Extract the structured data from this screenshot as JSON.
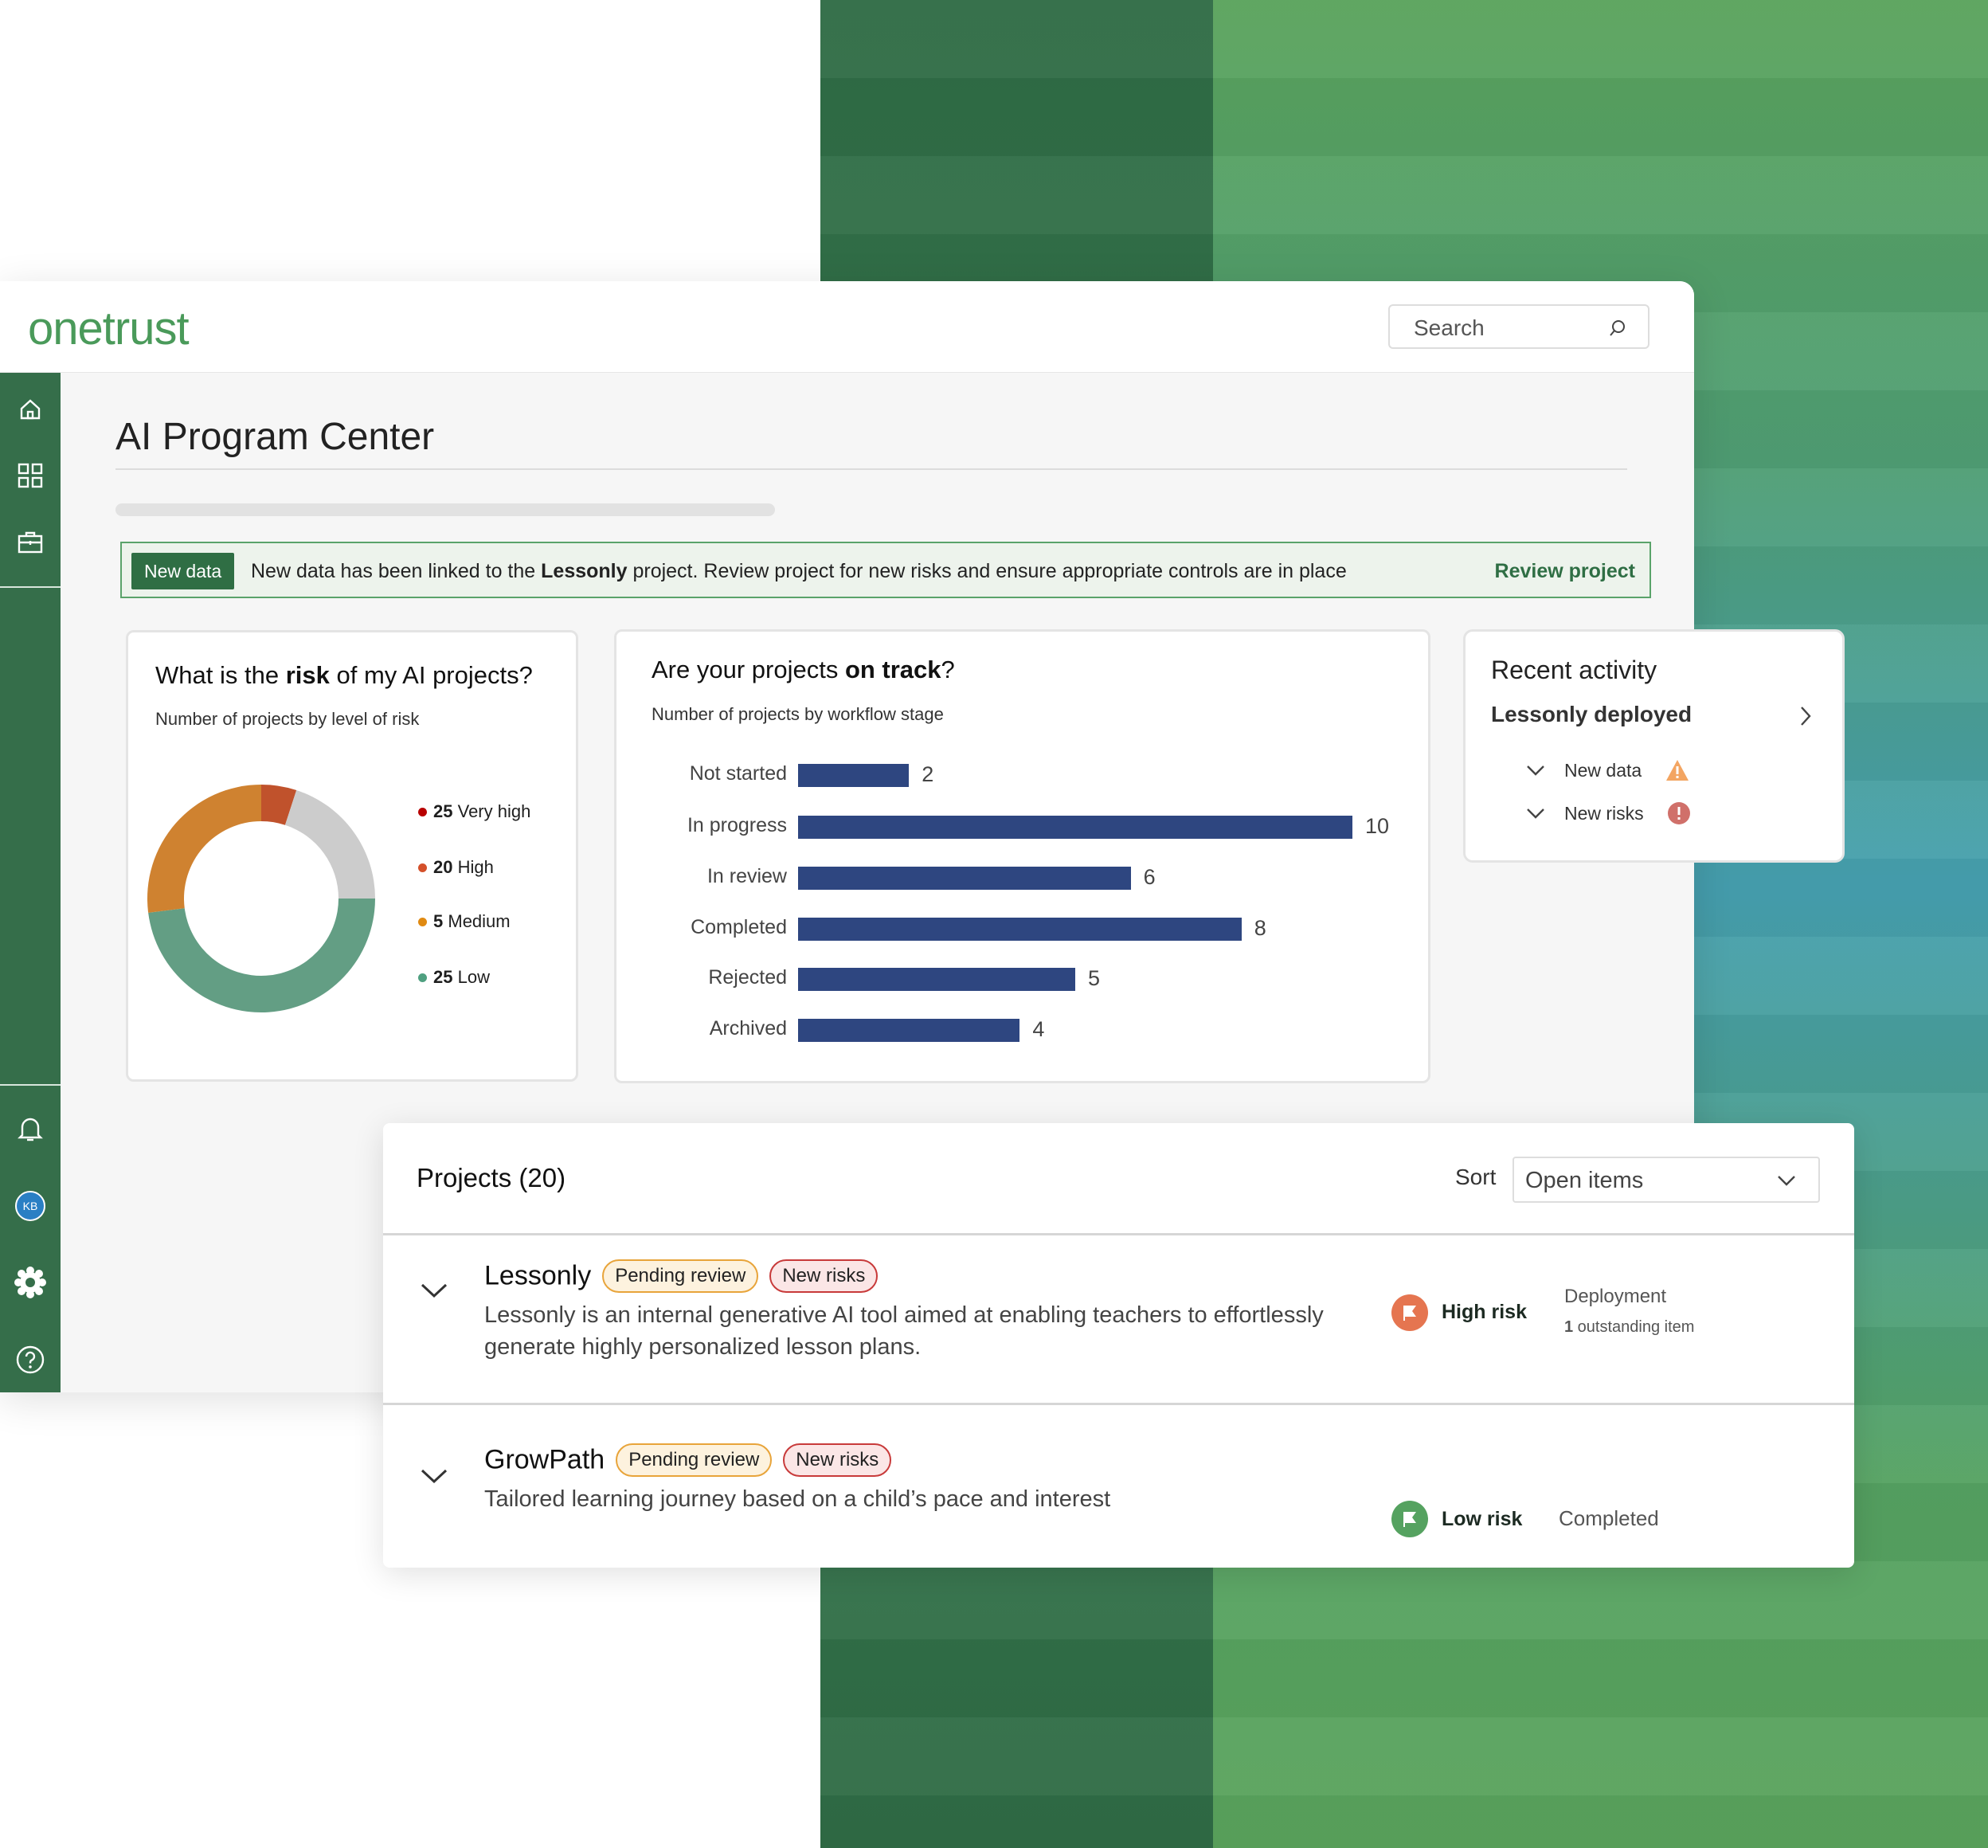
{
  "app": {
    "logo": "onetrust",
    "search_placeholder": "Search"
  },
  "sidebar": {
    "items": [
      {
        "icon": "home-icon"
      },
      {
        "icon": "grid-icon"
      },
      {
        "icon": "briefcase-icon"
      }
    ],
    "bottom": [
      {
        "icon": "bell-icon"
      },
      {
        "icon": "avatar",
        "label": "KB"
      },
      {
        "icon": "gear-icon"
      },
      {
        "icon": "help-icon"
      }
    ]
  },
  "page": {
    "title": "AI Program Center"
  },
  "banner": {
    "badge": "New data",
    "pre": "New data has been linked to the ",
    "project": "Lessonly",
    "post": " project. Review project for new risks and ensure appropriate controls are in place",
    "link": "Review project"
  },
  "risk_card": {
    "title_pre": "What is the ",
    "title_bold": "risk",
    "title_post": " of my AI projects?",
    "subtitle": "Number of projects by level of risk"
  },
  "bar_card": {
    "title_pre": "Are your projects ",
    "title_bold": "on track",
    "title_post": "?",
    "subtitle": "Number of projects by workflow stage"
  },
  "chart_data": [
    {
      "type": "pie",
      "subtype": "donut",
      "legend": [
        {
          "value": "25",
          "label": "Very high",
          "color": "#b80000"
        },
        {
          "value": "20",
          "label": "High",
          "color": "#d4502a"
        },
        {
          "value": "5",
          "label": "Medium",
          "color": "#e08a12"
        },
        {
          "value": "25",
          "label": "Low",
          "color": "#4fa080"
        }
      ],
      "slices": [
        {
          "share": 5,
          "color": "#c0522c"
        },
        {
          "share": 20,
          "color": "#cccccc"
        },
        {
          "share": 48,
          "color": "#639e84"
        },
        {
          "share": 27,
          "color": "#cf8230"
        }
      ],
      "legend_position": "right"
    },
    {
      "type": "bar",
      "orientation": "horizontal",
      "categories": [
        "Not started",
        "In progress",
        "In review",
        "Completed",
        "Rejected",
        "Archived"
      ],
      "values": [
        2,
        10,
        6,
        8,
        5,
        4
      ],
      "color": "#2e4680"
    }
  ],
  "recent": {
    "title": "Recent activity",
    "item": "Lessonly deployed",
    "subs": [
      {
        "label": "New data",
        "icon": "warning-icon",
        "color": "#f3a562"
      },
      {
        "label": "New risks",
        "icon": "error-icon",
        "color": "#d0706a"
      }
    ]
  },
  "projects": {
    "title": "Projects (20)",
    "sort_label": "Sort",
    "sort_value": "Open items",
    "rows": [
      {
        "name": "Lessonly",
        "tags": [
          "Pending review",
          "New risks"
        ],
        "desc": "Lessonly is an internal generative AI tool aimed at enabling teachers to effortlessly generate highly personalized lesson plans.",
        "risk": "High risk",
        "risk_color": "#e57550",
        "stage": "Deployment",
        "outstanding_count": "1",
        "outstanding_text": " outstanding item"
      },
      {
        "name": "GrowPath",
        "tags": [
          "Pending review",
          "New risks"
        ],
        "desc": "Tailored learning journey based on a child’s pace and interest",
        "risk": "Low risk",
        "risk_color": "#55a260",
        "stage": "Completed"
      }
    ]
  }
}
